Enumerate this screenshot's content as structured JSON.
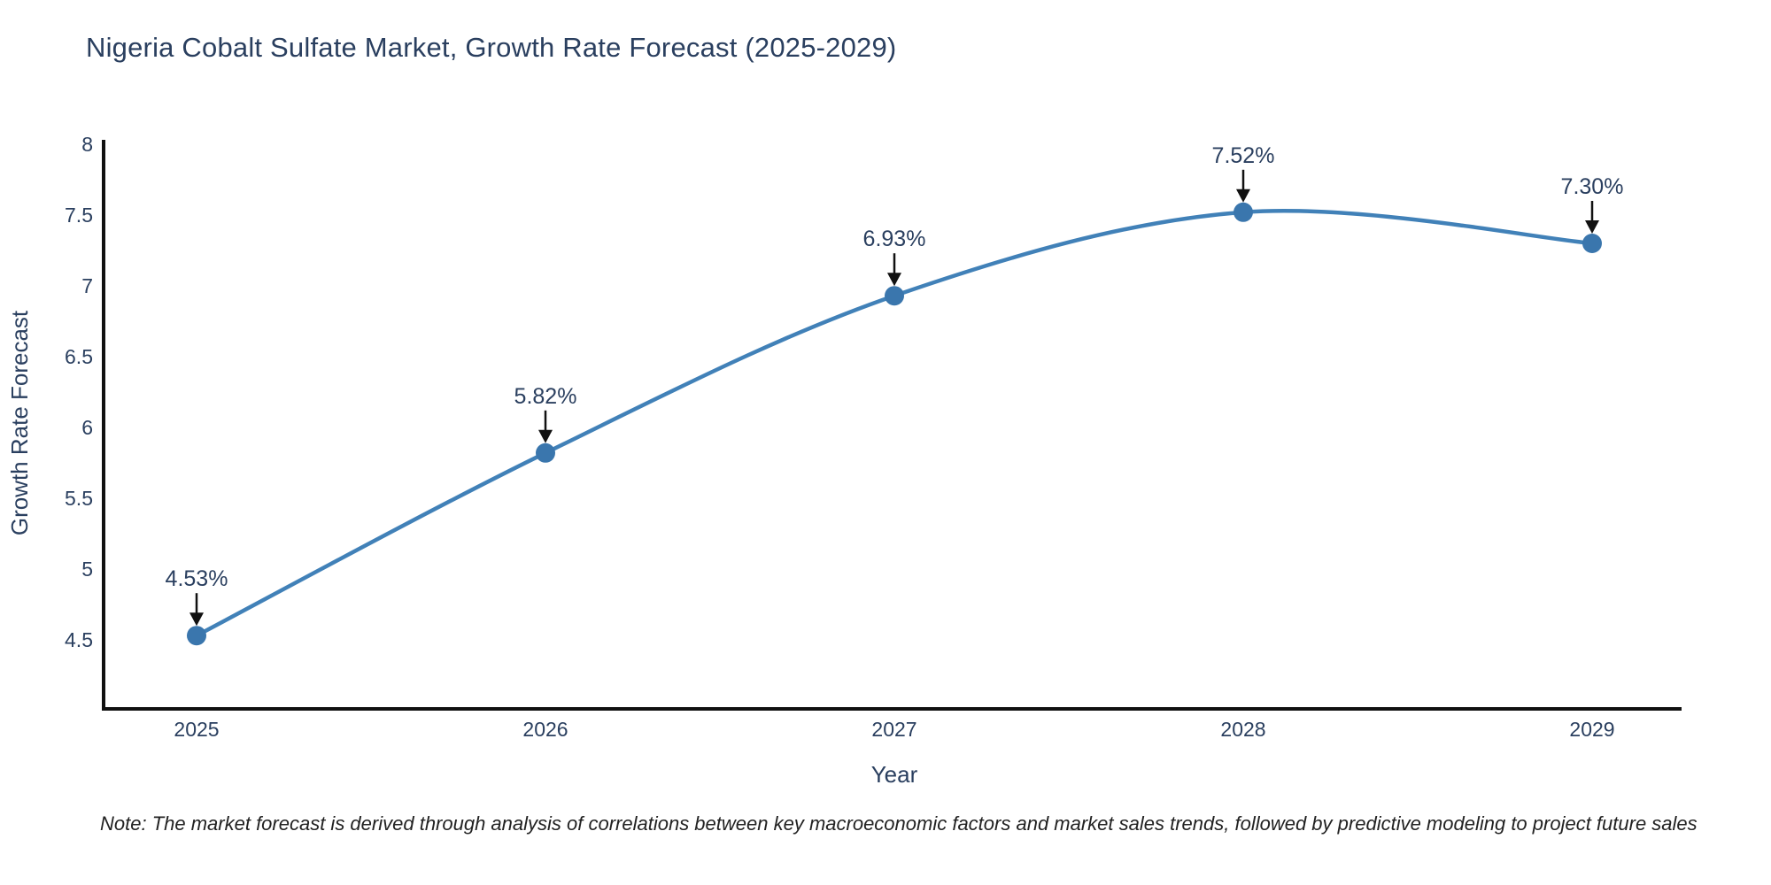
{
  "title": "Nigeria Cobalt Sulfate Market, Growth Rate Forecast (2025-2029)",
  "note": "Note: The market forecast is derived through analysis of correlations between key macroeconomic factors and market sales trends, followed by predictive modeling to project future sales",
  "chart_data": {
    "type": "line",
    "line_shape": "spline",
    "categories": [
      "2025",
      "2026",
      "2027",
      "2028",
      "2029"
    ],
    "x": [
      2025,
      2026,
      2027,
      2028,
      2029
    ],
    "values": [
      4.53,
      5.82,
      6.93,
      7.52,
      7.3
    ],
    "point_labels": [
      "4.53%",
      "5.82%",
      "6.93%",
      "7.52%",
      "7.30%"
    ],
    "xlabel": "Year",
    "ylabel": "Growth Rate Forecast",
    "ylim": [
      4.5,
      8
    ],
    "yticks": [
      4.5,
      5,
      5.5,
      6,
      6.5,
      7,
      7.5,
      8
    ],
    "grid": false,
    "legend": "none",
    "markers": true,
    "annotation_arrows": true
  },
  "colors": {
    "line": "#4181b8",
    "marker_fill": "#3a76ad",
    "text": "#2a3f5f",
    "axis_line": "#111111",
    "arrow": "#111111",
    "note_text": "#222222",
    "background": "#ffffff"
  }
}
